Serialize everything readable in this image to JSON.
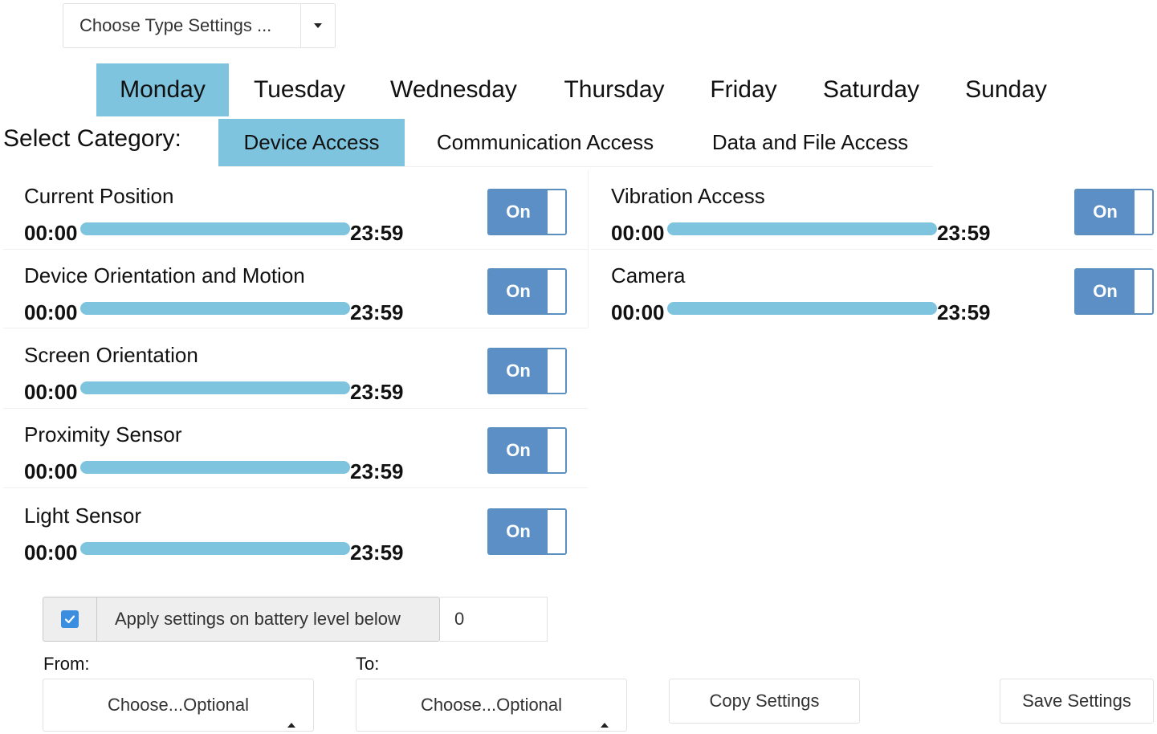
{
  "type_settings": {
    "label": "Choose Type Settings ..."
  },
  "days": [
    "Monday",
    "Tuesday",
    "Wednesday",
    "Thursday",
    "Friday",
    "Saturday",
    "Sunday"
  ],
  "active_day": "Monday",
  "category": {
    "label": "Select Category:",
    "tabs": [
      "Device Access",
      "Communication Access",
      "Data and File Access"
    ],
    "active": "Device Access"
  },
  "permissions_left": [
    {
      "name": "Current Position",
      "start": "00:00",
      "end": "23:59",
      "toggle": "On"
    },
    {
      "name": "Device Orientation and Motion",
      "start": "00:00",
      "end": "23:59",
      "toggle": "On"
    },
    {
      "name": "Screen Orientation",
      "start": "00:00",
      "end": "23:59",
      "toggle": "On"
    },
    {
      "name": "Proximity Sensor",
      "start": "00:00",
      "end": "23:59",
      "toggle": "On"
    },
    {
      "name": "Light Sensor",
      "start": "00:00",
      "end": "23:59",
      "toggle": "On"
    }
  ],
  "permissions_right": [
    {
      "name": "Vibration Access",
      "start": "00:00",
      "end": "23:59",
      "toggle": "On"
    },
    {
      "name": "Camera",
      "start": "00:00",
      "end": "23:59",
      "toggle": "On"
    }
  ],
  "battery": {
    "checked": true,
    "label": "Apply settings on battery level below",
    "value": "0"
  },
  "from": {
    "label": "From:",
    "placeholder": "Choose...Optional"
  },
  "to": {
    "label": "To:",
    "placeholder": "Choose...Optional"
  },
  "buttons": {
    "copy": "Copy Settings",
    "save": "Save Settings"
  },
  "colors": {
    "active_tab": "#7ec4de",
    "toggle_on": "#5b8fc6",
    "slider": "#7ec4de",
    "checkbox": "#3b8de0"
  }
}
